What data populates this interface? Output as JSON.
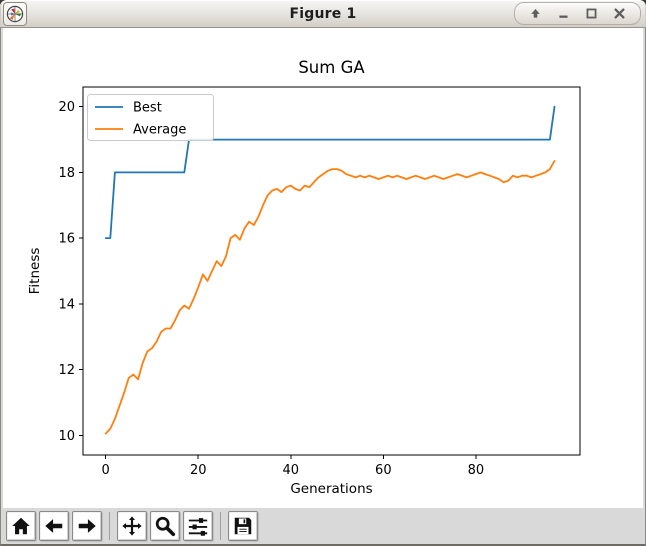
{
  "window": {
    "title": "Figure 1",
    "app_icon": "matplotlib-logo-icon",
    "controls": [
      {
        "name": "shade",
        "icon": "arrow-up-icon"
      },
      {
        "name": "minimize",
        "icon": "minimize-icon"
      },
      {
        "name": "maximize",
        "icon": "maximize-icon"
      },
      {
        "name": "close",
        "icon": "close-icon"
      }
    ]
  },
  "chart_data": {
    "type": "line",
    "title": "Sum GA",
    "xlabel": "Generations",
    "ylabel": "Fitness",
    "xticks": [
      0,
      20,
      40,
      60,
      80
    ],
    "yticks": [
      10,
      12,
      14,
      16,
      18,
      20
    ],
    "xlim": [
      -4.9,
      102.5
    ],
    "ylim": [
      9.4,
      20.6
    ],
    "grid": false,
    "legend_position": "upper left",
    "x": [
      0,
      1,
      2,
      3,
      4,
      5,
      6,
      7,
      8,
      9,
      10,
      11,
      12,
      13,
      14,
      15,
      16,
      17,
      18,
      19,
      20,
      21,
      22,
      23,
      24,
      25,
      26,
      27,
      28,
      29,
      30,
      31,
      32,
      33,
      34,
      35,
      36,
      37,
      38,
      39,
      40,
      41,
      42,
      43,
      44,
      45,
      46,
      47,
      48,
      49,
      50,
      51,
      52,
      53,
      54,
      55,
      56,
      57,
      58,
      59,
      60,
      61,
      62,
      63,
      64,
      65,
      66,
      67,
      68,
      69,
      70,
      71,
      72,
      73,
      74,
      75,
      76,
      77,
      78,
      79,
      80,
      81,
      82,
      83,
      84,
      85,
      86,
      87,
      88,
      89,
      90,
      91,
      92,
      93,
      94,
      95,
      96,
      97
    ],
    "series": [
      {
        "name": "Best",
        "color": "#1f77b4",
        "values": [
          16,
          16,
          18,
          18,
          18,
          18,
          18,
          18,
          18,
          18,
          18,
          18,
          18,
          18,
          18,
          18,
          18,
          18,
          19,
          19,
          19,
          19,
          19,
          19,
          19,
          19,
          19,
          19,
          19,
          19,
          19,
          19,
          19,
          19,
          19,
          19,
          19,
          19,
          19,
          19,
          19,
          19,
          19,
          19,
          19,
          19,
          19,
          19,
          19,
          19,
          19,
          19,
          19,
          19,
          19,
          19,
          19,
          19,
          19,
          19,
          19,
          19,
          19,
          19,
          19,
          19,
          19,
          19,
          19,
          19,
          19,
          19,
          19,
          19,
          19,
          19,
          19,
          19,
          19,
          19,
          19,
          19,
          19,
          19,
          19,
          19,
          19,
          19,
          19,
          19,
          19,
          19,
          19,
          19,
          19,
          19,
          19,
          20
        ]
      },
      {
        "name": "Average",
        "color": "#ff7f0e",
        "values": [
          10.05,
          10.2,
          10.5,
          10.9,
          11.3,
          11.75,
          11.85,
          11.7,
          12.2,
          12.55,
          12.65,
          12.85,
          13.15,
          13.25,
          13.25,
          13.5,
          13.8,
          13.95,
          13.85,
          14.15,
          14.5,
          14.9,
          14.7,
          15.0,
          15.3,
          15.15,
          15.45,
          16.0,
          16.1,
          15.95,
          16.3,
          16.5,
          16.4,
          16.65,
          17.0,
          17.3,
          17.45,
          17.5,
          17.4,
          17.55,
          17.6,
          17.5,
          17.45,
          17.6,
          17.55,
          17.7,
          17.85,
          17.95,
          18.05,
          18.1,
          18.1,
          18.05,
          17.95,
          17.9,
          17.85,
          17.9,
          17.85,
          17.9,
          17.85,
          17.8,
          17.85,
          17.9,
          17.85,
          17.9,
          17.85,
          17.8,
          17.85,
          17.9,
          17.85,
          17.8,
          17.85,
          17.9,
          17.85,
          17.8,
          17.85,
          17.9,
          17.95,
          17.9,
          17.85,
          17.9,
          17.95,
          18.0,
          17.95,
          17.9,
          17.85,
          17.8,
          17.7,
          17.75,
          17.9,
          17.85,
          17.9,
          17.9,
          17.85,
          17.9,
          17.95,
          18.0,
          18.1,
          18.35
        ]
      }
    ]
  },
  "toolbar": {
    "background": "#d9d9d9",
    "buttons": [
      {
        "name": "home",
        "icon": "home-icon"
      },
      {
        "name": "back",
        "icon": "arrow-left-icon"
      },
      {
        "name": "forward",
        "icon": "arrow-right-icon"
      },
      {
        "name": "pan",
        "icon": "move-arrows-icon"
      },
      {
        "name": "zoom",
        "icon": "magnifier-icon"
      },
      {
        "name": "configure-subplots",
        "icon": "sliders-icon"
      },
      {
        "name": "save",
        "icon": "floppy-disk-icon"
      }
    ]
  },
  "colors": {
    "best_line": "#1f77b4",
    "average_line": "#ff7f0e",
    "canvas": "#ffffff",
    "chrome": "#d9d9d9"
  }
}
